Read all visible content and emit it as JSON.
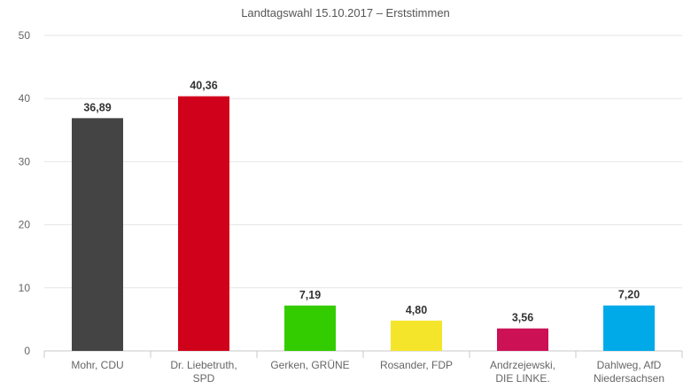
{
  "chart_data": {
    "type": "bar",
    "subtitle": "Landtagswahl 15.10.2017 – Erststimmen",
    "categories": [
      [
        "Mohr, CDU"
      ],
      [
        "Dr. Liebetruth,",
        "SPD"
      ],
      [
        "Gerken, GRÜNE"
      ],
      [
        "Rosander, FDP"
      ],
      [
        "Andrzejewski,",
        "DIE LINKE."
      ],
      [
        "Dahlweg, AfD",
        "Niedersachsen"
      ]
    ],
    "values": [
      36.89,
      40.36,
      7.19,
      4.8,
      3.56,
      7.2
    ],
    "value_labels": [
      "36,89",
      "40,36",
      "7,19",
      "4,80",
      "3,56",
      "7,20"
    ],
    "colors": [
      "#444444",
      "#d0021b",
      "#33cc00",
      "#f5e52a",
      "#cc1155",
      "#00aae8"
    ],
    "ylim": [
      0,
      50
    ],
    "yticks": [
      0,
      10,
      20,
      30,
      40,
      50
    ],
    "grid": true,
    "legend": "none"
  }
}
